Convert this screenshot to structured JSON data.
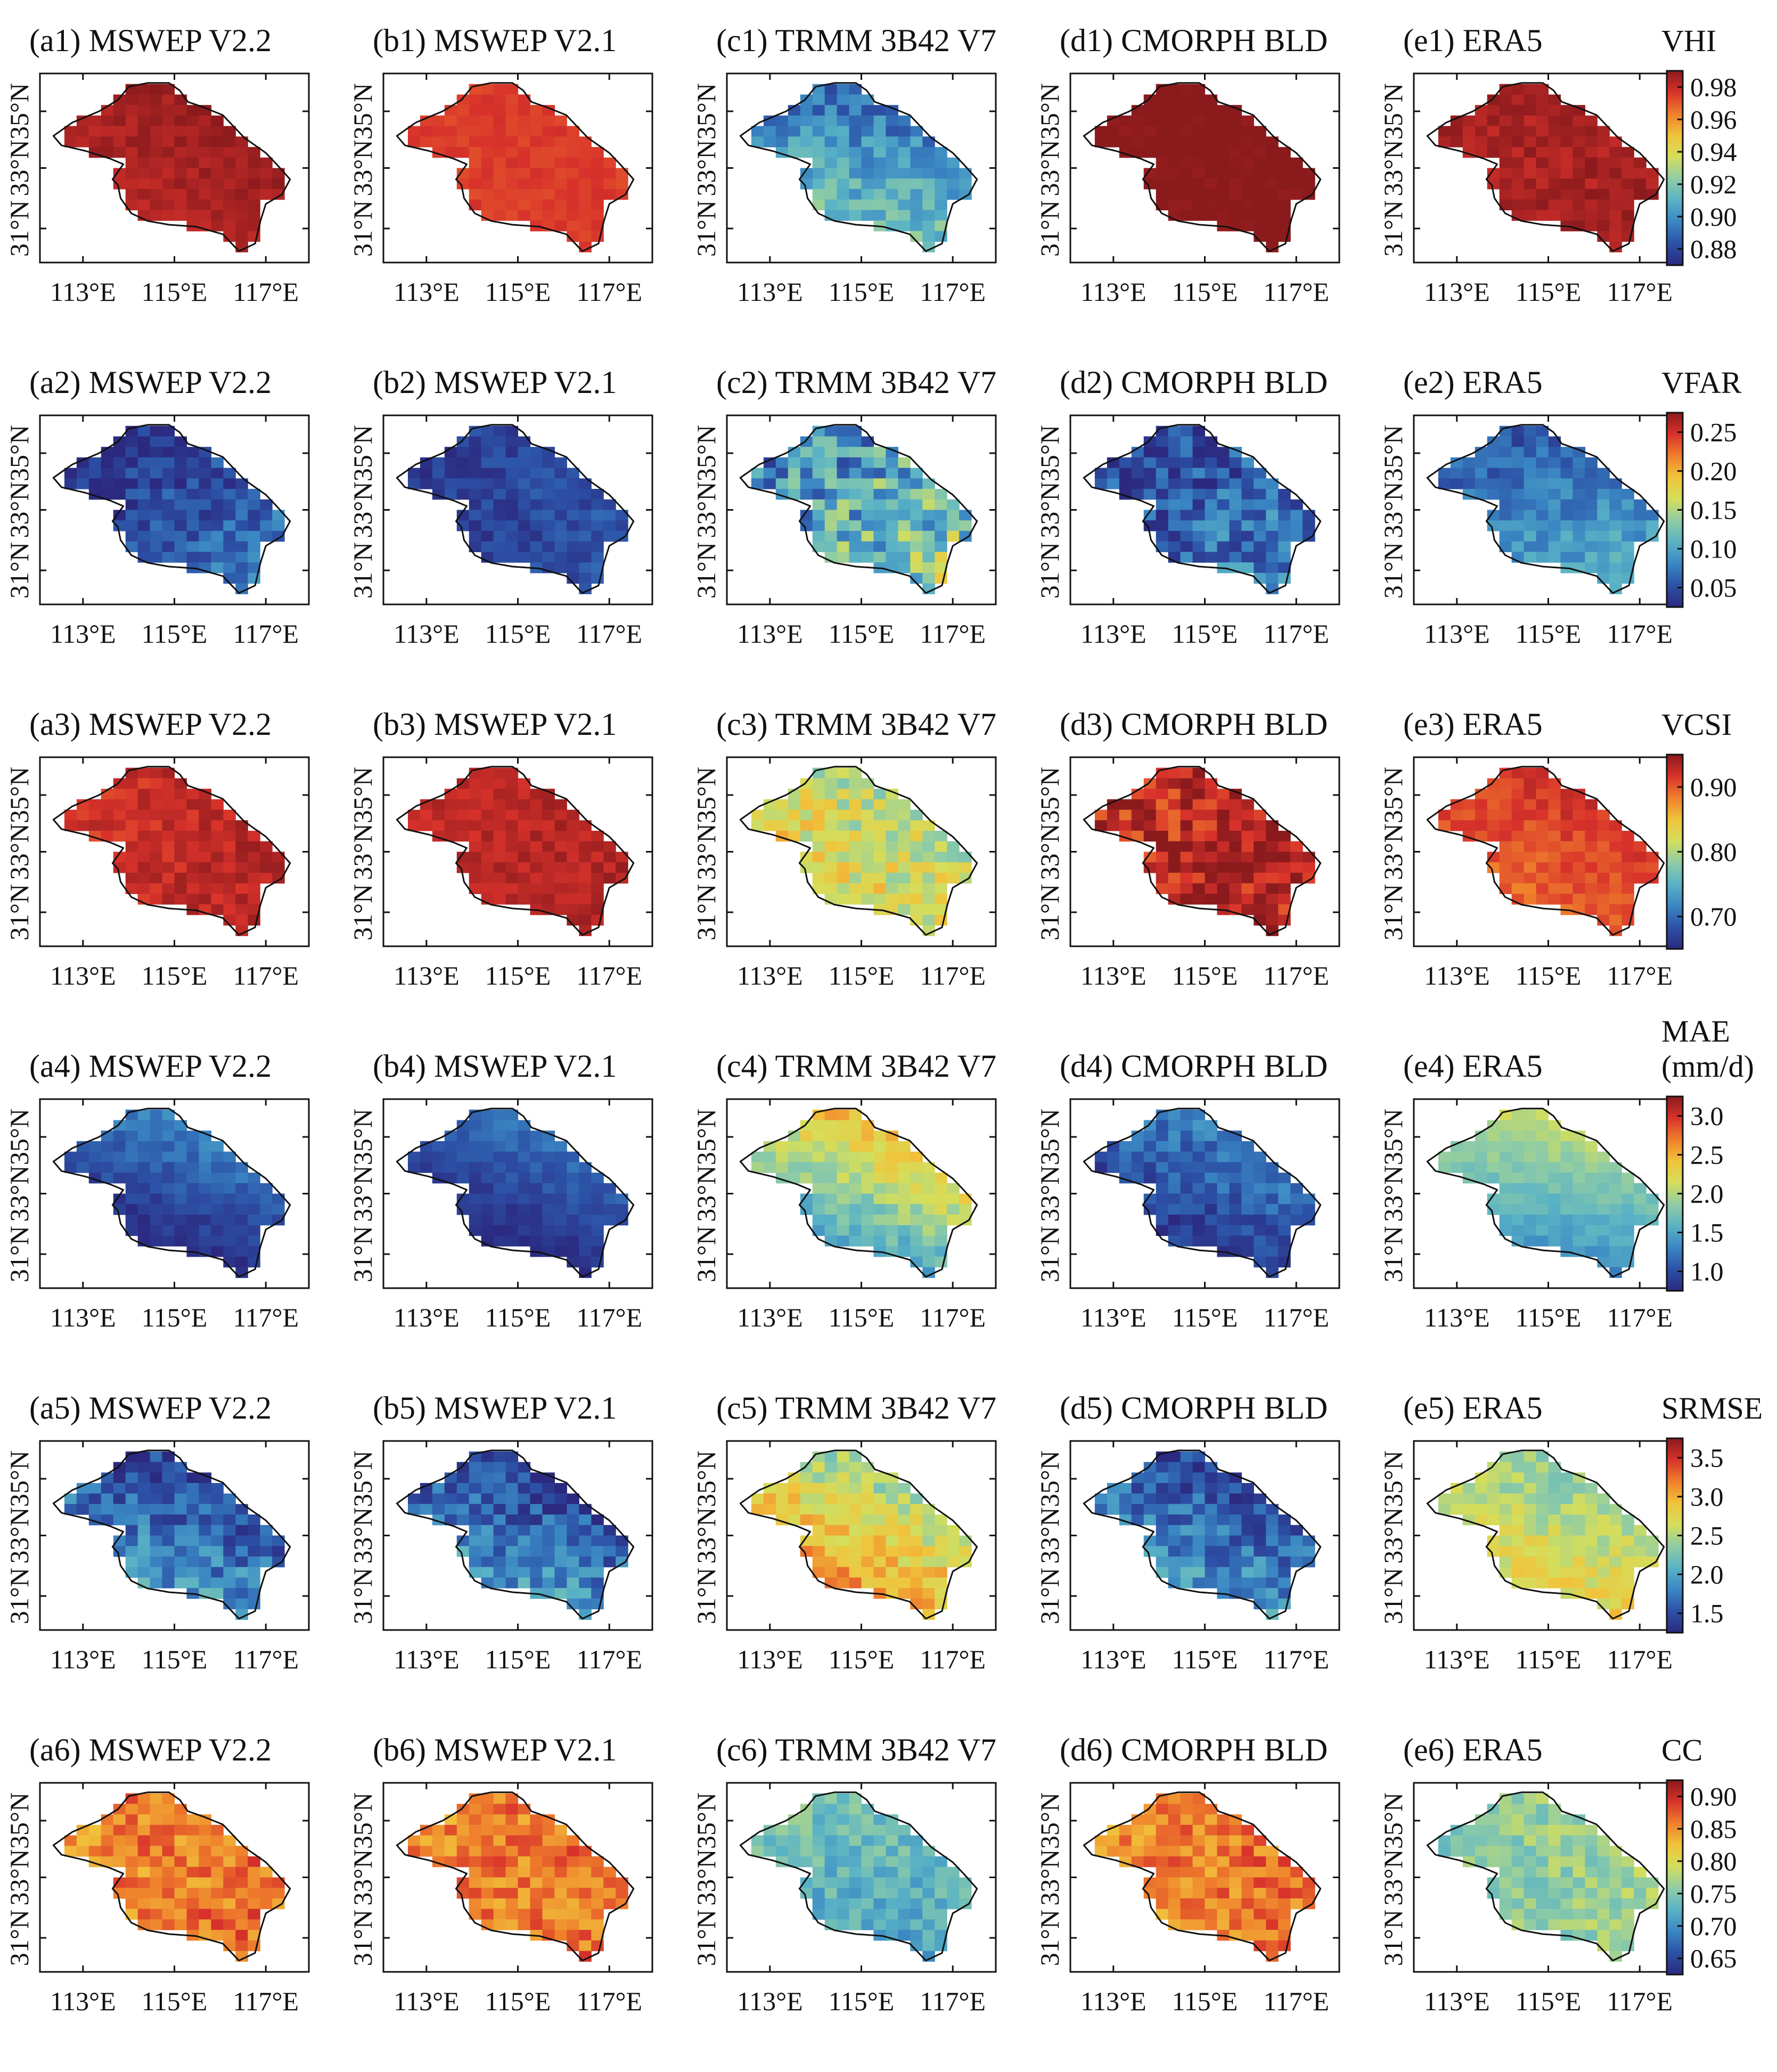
{
  "figure": {
    "columns": [
      "MSWEP V2.2",
      "MSWEP V2.1",
      "TRMM 3B42 V7",
      "CMORPH BLD",
      "ERA5"
    ],
    "column_letters": [
      "a",
      "b",
      "c",
      "d",
      "e"
    ],
    "x_ticks": [
      "113°E",
      "115°E",
      "117°E"
    ],
    "y_ticks": [
      "35°N",
      "33°N",
      "31°N"
    ],
    "rows": [
      {
        "metric": "VHI",
        "metric_lines": [
          "VHI"
        ],
        "cbar_ticks": [
          "0.98",
          "0.96",
          "0.94",
          "0.92",
          "0.90",
          "0.88"
        ],
        "panels": [
          {
            "label": "(a1) MSWEP V2.2",
            "base": 0.985,
            "grad_x": 0.002,
            "grad_y": -0.002,
            "noise": 0.004
          },
          {
            "label": "(b1) MSWEP V2.1",
            "base": 0.975,
            "grad_x": 0.0,
            "grad_y": 0.0,
            "noise": 0.003
          },
          {
            "label": "(c1) TRMM 3B42 V7",
            "base": 0.905,
            "grad_x": -0.005,
            "grad_y": 0.02,
            "noise": 0.012
          },
          {
            "label": "(d1) CMORPH BLD",
            "base": 0.992,
            "grad_x": 0.0,
            "grad_y": 0.0,
            "noise": 0.004
          },
          {
            "label": "(e1) ERA5",
            "base": 0.985,
            "grad_x": 0.0,
            "grad_y": 0.0,
            "noise": 0.005
          }
        ]
      },
      {
        "metric": "VFAR",
        "metric_lines": [
          "VFAR"
        ],
        "cbar_ticks": [
          "0.25",
          "0.20",
          "0.15",
          "0.10",
          "0.05"
        ],
        "panels": [
          {
            "label": "(a2) MSWEP V2.2",
            "base": 0.05,
            "grad_x": 0.02,
            "grad_y": 0.02,
            "noise": 0.025
          },
          {
            "label": "(b2) MSWEP V2.1",
            "base": 0.045,
            "grad_x": 0.01,
            "grad_y": 0.0,
            "noise": 0.015
          },
          {
            "label": "(c2) TRMM 3B42 V7",
            "base": 0.11,
            "grad_x": 0.02,
            "grad_y": 0.02,
            "noise": 0.05
          },
          {
            "label": "(d2) CMORPH BLD",
            "base": 0.06,
            "grad_x": 0.01,
            "grad_y": 0.02,
            "noise": 0.035
          },
          {
            "label": "(e2) ERA5",
            "base": 0.08,
            "grad_x": 0.01,
            "grad_y": 0.03,
            "noise": 0.02
          }
        ]
      },
      {
        "metric": "VCSI",
        "metric_lines": [
          "VCSI"
        ],
        "cbar_ticks": [
          "0.90",
          "0.80",
          "0.70"
        ],
        "panels": [
          {
            "label": "(a3) MSWEP V2.2",
            "base": 0.925,
            "grad_x": 0.01,
            "grad_y": 0.0,
            "noise": 0.015
          },
          {
            "label": "(b3) MSWEP V2.1",
            "base": 0.93,
            "grad_x": 0.005,
            "grad_y": 0.0,
            "noise": 0.012
          },
          {
            "label": "(c3) TRMM 3B42 V7",
            "base": 0.82,
            "grad_x": -0.02,
            "grad_y": 0.02,
            "noise": 0.035
          },
          {
            "label": "(d3) CMORPH BLD",
            "base": 0.93,
            "grad_x": 0.01,
            "grad_y": 0.0,
            "noise": 0.035
          },
          {
            "label": "(e3) ERA5",
            "base": 0.905,
            "grad_x": 0.01,
            "grad_y": -0.02,
            "noise": 0.015
          }
        ]
      },
      {
        "metric": "MAE",
        "metric_lines": [
          "MAE",
          "(mm/d)"
        ],
        "cbar_ticks": [
          "3.0",
          "2.5",
          "2.0",
          "1.5",
          "1.0"
        ],
        "panels": [
          {
            "label": "(a4) MSWEP V2.2",
            "base": 1.0,
            "grad_x": 0.2,
            "grad_y": -0.4,
            "noise": 0.12
          },
          {
            "label": "(b4) MSWEP V2.1",
            "base": 0.95,
            "grad_x": 0.2,
            "grad_y": -0.35,
            "noise": 0.1
          },
          {
            "label": "(c4) TRMM 3B42 V7",
            "base": 1.9,
            "grad_x": 0.4,
            "grad_y": -0.7,
            "noise": 0.2
          },
          {
            "label": "(d4) CMORPH BLD",
            "base": 1.05,
            "grad_x": 0.2,
            "grad_y": -0.3,
            "noise": 0.2
          },
          {
            "label": "(e4) ERA5",
            "base": 1.7,
            "grad_x": 0.1,
            "grad_y": -0.5,
            "noise": 0.1
          }
        ]
      },
      {
        "metric": "SRMSE",
        "metric_lines": [
          "SRMSE"
        ],
        "cbar_ticks": [
          "3.5",
          "3.0",
          "2.5",
          "2.0",
          "1.5"
        ],
        "panels": [
          {
            "label": "(a5) MSWEP V2.2",
            "base": 1.7,
            "grad_x": -0.2,
            "grad_y": 0.4,
            "noise": 0.3
          },
          {
            "label": "(b5) MSWEP V2.1",
            "base": 1.7,
            "grad_x": -0.2,
            "grad_y": 0.4,
            "noise": 0.3
          },
          {
            "label": "(c5) TRMM 3B42 V7",
            "base": 2.8,
            "grad_x": -0.3,
            "grad_y": 0.5,
            "noise": 0.25
          },
          {
            "label": "(d5) CMORPH BLD",
            "base": 1.7,
            "grad_x": -0.2,
            "grad_y": 0.4,
            "noise": 0.3
          },
          {
            "label": "(e5) ERA5",
            "base": 2.6,
            "grad_x": -0.1,
            "grad_y": 0.3,
            "noise": 0.2
          }
        ]
      },
      {
        "metric": "CC",
        "metric_lines": [
          "CC"
        ],
        "cbar_ticks": [
          "0.90",
          "0.85",
          "0.80",
          "0.75",
          "0.70",
          "0.65"
        ],
        "panels": [
          {
            "label": "(a6) MSWEP V2.2",
            "base": 0.86,
            "grad_x": 0.01,
            "grad_y": 0.0,
            "noise": 0.03
          },
          {
            "label": "(b6) MSWEP V2.1",
            "base": 0.86,
            "grad_x": 0.01,
            "grad_y": 0.0,
            "noise": 0.03
          },
          {
            "label": "(c6) TRMM 3B42 V7",
            "base": 0.73,
            "grad_x": 0.0,
            "grad_y": -0.02,
            "noise": 0.025
          },
          {
            "label": "(d6) CMORPH BLD",
            "base": 0.86,
            "grad_x": 0.01,
            "grad_y": 0.0,
            "noise": 0.03
          },
          {
            "label": "(e6) ERA5",
            "base": 0.76,
            "grad_x": 0.01,
            "grad_y": 0.0,
            "noise": 0.025
          }
        ]
      }
    ]
  },
  "colors": {
    "colormap": [
      "#2b2a80",
      "#2c51a6",
      "#3a86c3",
      "#59b2c5",
      "#8fcca5",
      "#d4de5c",
      "#f1c33b",
      "#ef7f2c",
      "#d8322b",
      "#8b1a1d"
    ],
    "axis": "#111111",
    "boundary": "#111111"
  }
}
